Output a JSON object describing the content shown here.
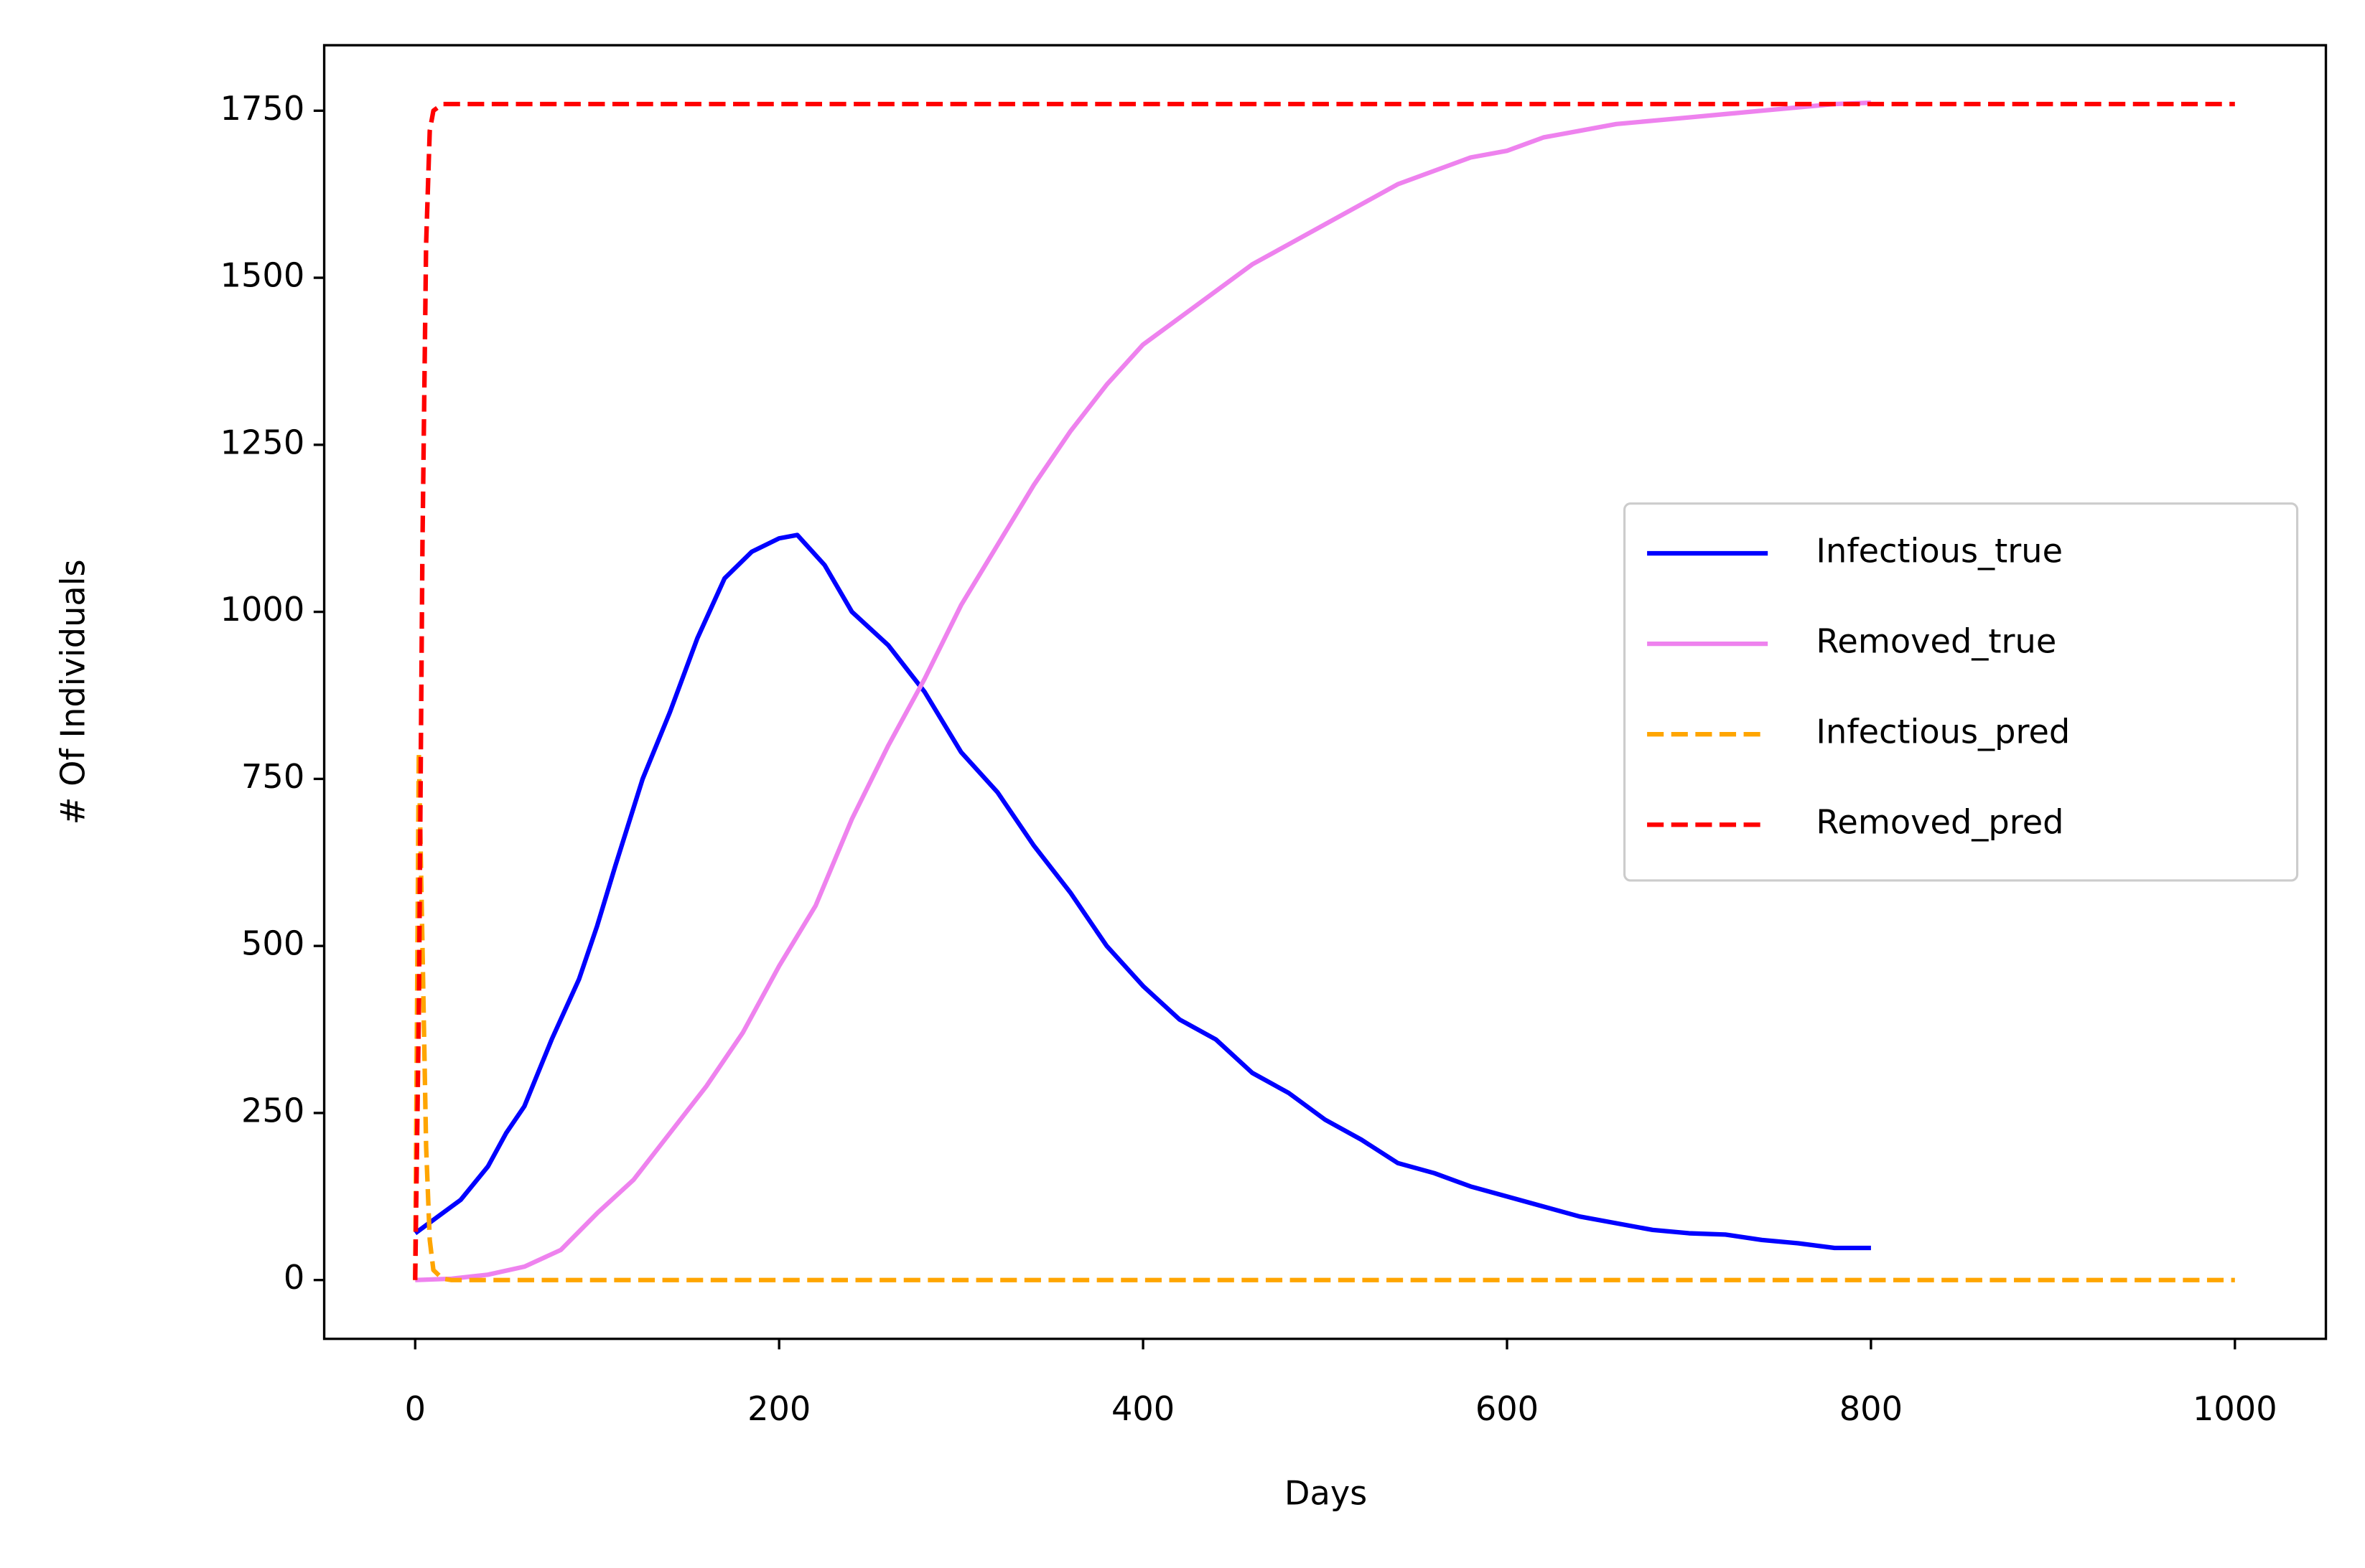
{
  "chart_data": {
    "type": "line",
    "xlabel": "Days",
    "ylabel": "# Of Individuals",
    "xlim": [
      -50,
      1050
    ],
    "xticks": [
      0,
      200,
      400,
      600,
      800,
      1000
    ],
    "ylim": [
      -88,
      1848
    ],
    "yticks": [
      0,
      250,
      500,
      750,
      1000,
      1250,
      1500,
      1750
    ],
    "legend": "center right",
    "series": [
      {
        "name": "Infectious_true",
        "color": "#0000ff",
        "style": "solid",
        "x": [
          0,
          10,
          25,
          40,
          50,
          60,
          75,
          90,
          100,
          110,
          125,
          140,
          155,
          170,
          185,
          200,
          210,
          225,
          240,
          260,
          280,
          300,
          320,
          340,
          360,
          380,
          400,
          420,
          440,
          460,
          480,
          500,
          520,
          540,
          560,
          580,
          600,
          620,
          640,
          660,
          680,
          700,
          720,
          740,
          760,
          780,
          800
        ],
        "values": [
          70,
          90,
          120,
          170,
          220,
          260,
          360,
          450,
          530,
          620,
          750,
          850,
          960,
          1050,
          1090,
          1110,
          1115,
          1070,
          1000,
          950,
          880,
          790,
          730,
          650,
          580,
          500,
          440,
          390,
          360,
          310,
          280,
          240,
          210,
          175,
          160,
          140,
          125,
          110,
          95,
          85,
          75,
          70,
          68,
          60,
          55,
          48,
          48
        ]
      },
      {
        "name": "Removed_true",
        "color": "#ee82ee",
        "style": "solid",
        "x": [
          0,
          20,
          40,
          60,
          80,
          100,
          120,
          140,
          160,
          180,
          200,
          220,
          240,
          260,
          280,
          300,
          320,
          340,
          360,
          380,
          400,
          420,
          440,
          460,
          480,
          500,
          520,
          540,
          560,
          580,
          600,
          620,
          640,
          660,
          680,
          700,
          720,
          740,
          760,
          780,
          800
        ],
        "values": [
          0,
          2,
          8,
          20,
          45,
          100,
          150,
          220,
          290,
          370,
          470,
          560,
          690,
          800,
          900,
          1010,
          1100,
          1190,
          1270,
          1340,
          1400,
          1440,
          1480,
          1520,
          1550,
          1580,
          1610,
          1640,
          1660,
          1680,
          1690,
          1710,
          1720,
          1730,
          1735,
          1740,
          1745,
          1750,
          1755,
          1760,
          1762
        ]
      },
      {
        "name": "Infectious_pred",
        "color": "#ffa500",
        "style": "dashed",
        "x": [
          0,
          2,
          4,
          6,
          8,
          10,
          15,
          20,
          1000
        ],
        "values": [
          0,
          790,
          500,
          200,
          60,
          15,
          2,
          0,
          0
        ]
      },
      {
        "name": "Removed_pred",
        "color": "#ff0000",
        "style": "dashed",
        "x": [
          0,
          2,
          4,
          6,
          8,
          10,
          15,
          1000
        ],
        "values": [
          0,
          400,
          1100,
          1550,
          1720,
          1750,
          1760,
          1760
        ]
      }
    ]
  }
}
